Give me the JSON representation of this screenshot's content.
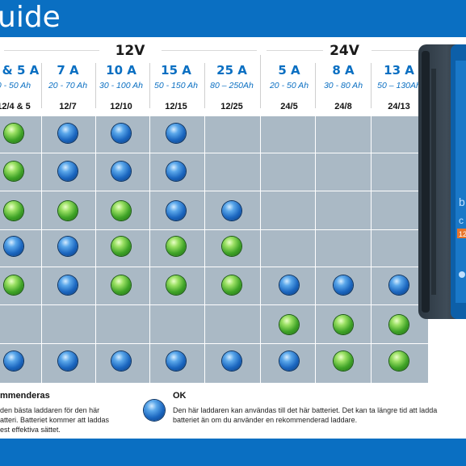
{
  "header": {
    "title": "uide"
  },
  "voltage_groups": [
    {
      "label": "12V",
      "left": 0,
      "width": 322
    },
    {
      "label": "24V",
      "left": 323,
      "width": 207
    }
  ],
  "columns": [
    {
      "amp": "4 & 5 A",
      "range": "0 - 50 Ah",
      "model": "12/4 & 5"
    },
    {
      "amp": "7 A",
      "range": "20 - 70 Ah",
      "model": "12/7"
    },
    {
      "amp": "10 A",
      "range": "30 - 100 Ah",
      "model": "12/10"
    },
    {
      "amp": "15 A",
      "range": "50 - 150 Ah",
      "model": "12/15"
    },
    {
      "amp": "25 A",
      "range": "80 – 250Ah",
      "model": "12/25"
    },
    {
      "amp": "5 A",
      "range": "20 - 50 Ah",
      "model": "24/5"
    },
    {
      "amp": "8 A",
      "range": "30 - 80 Ah",
      "model": "24/8"
    },
    {
      "amp": "13 A",
      "range": "50 – 130Ah",
      "model": "24/13"
    }
  ],
  "rows": [
    [
      "green",
      "blue",
      "blue",
      "blue",
      "",
      "",
      "",
      ""
    ],
    [
      "green",
      "blue",
      "blue",
      "blue",
      "",
      "",
      "",
      ""
    ],
    [
      "green",
      "green",
      "green",
      "blue",
      "blue",
      "",
      "",
      ""
    ],
    [
      "blue",
      "blue",
      "green",
      "green",
      "green",
      "",
      "",
      ""
    ],
    [
      "green",
      "blue",
      "green",
      "green",
      "green",
      "blue",
      "blue",
      "blue"
    ],
    [
      "",
      "",
      "",
      "",
      "",
      "green",
      "green",
      "green"
    ],
    [
      "blue",
      "blue",
      "blue",
      "blue",
      "blue",
      "blue",
      "green",
      "green"
    ]
  ],
  "legend": {
    "recommended_title": "mmenderas",
    "recommended_lines": [
      "den bästa laddaren för den här",
      "atteri. Batteriet kommer att laddas",
      "est effektiva sättet."
    ],
    "ok_title": "OK",
    "ok_lines": [
      "Den här laddaren kan användas till det här batteriet. Det kan ta längre tid att ladda",
      "batteriet än om du använder en rekommenderad laddare."
    ]
  },
  "device_label_fragments": {
    "side_letter": "b",
    "side_letter_2": "c",
    "badge": "12"
  },
  "colors": {
    "header_blue": "#0a6fc2",
    "grid_bg": "#aab9c5",
    "amp_blue": "#0a6fc2"
  }
}
